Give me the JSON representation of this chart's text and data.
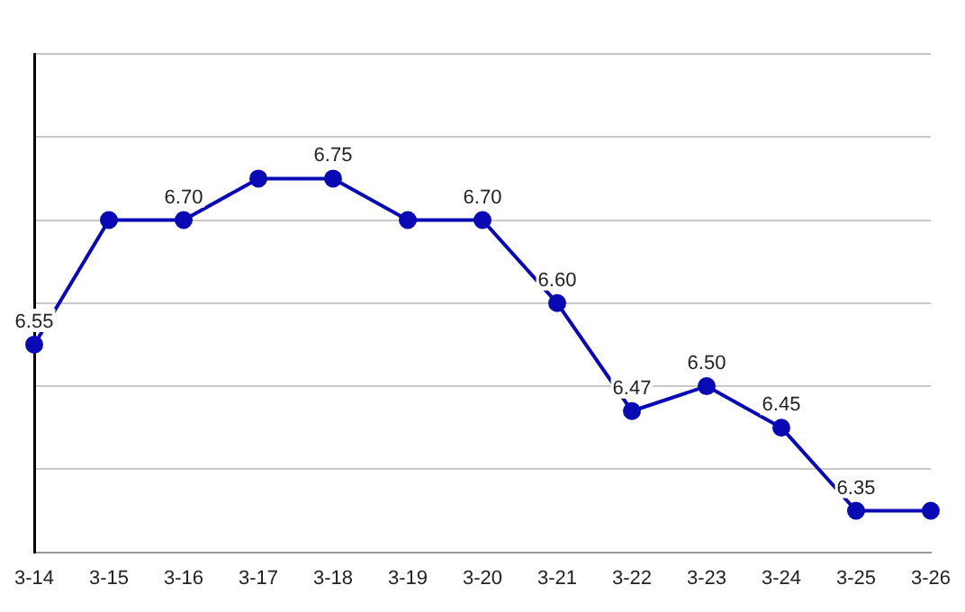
{
  "chart_data": {
    "type": "line",
    "categories": [
      "3-14",
      "3-15",
      "3-16",
      "3-17",
      "3-18",
      "3-19",
      "3-20",
      "3-21",
      "3-22",
      "3-23",
      "3-24",
      "3-25",
      "3-26"
    ],
    "series": [
      {
        "color": "#0a0ab4",
        "values": [
          6.55,
          6.7,
          6.7,
          6.75,
          6.75,
          6.7,
          6.7,
          6.6,
          6.47,
          6.5,
          6.45,
          6.35,
          6.35
        ],
        "value_labels": [
          "6.55",
          null,
          "6.70",
          null,
          "6.75",
          null,
          "6.70",
          "6.60",
          "6.47",
          "6.50",
          "6.45",
          "6.35",
          null
        ]
      }
    ],
    "ylim": [
      6.3,
      6.9
    ],
    "yticks": [
      {
        "value": 6.4,
        "label": null
      },
      {
        "value": 6.5,
        "label": null
      },
      {
        "value": 6.6,
        "label": null
      },
      {
        "value": 6.7,
        "label": null
      },
      {
        "value": 6.8,
        "label": null
      },
      {
        "value": 6.9,
        "label": null
      }
    ],
    "tick_labels": "x",
    "grid": "y",
    "legend": false,
    "marker": "circle",
    "line_style": "solid"
  }
}
